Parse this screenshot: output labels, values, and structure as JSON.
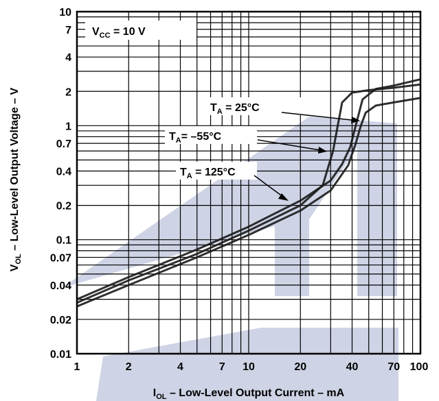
{
  "chart_data": {
    "type": "line",
    "title": "",
    "xlabel": {
      "main": "I",
      "sub": "OL",
      "rest": " – Low-Level Output Current – mA"
    },
    "ylabel": {
      "main": "V",
      "sub": "OL",
      "rest": "  – Low-Level Output Voltage – V"
    },
    "x_scale": "log",
    "y_scale": "log",
    "xlim": [
      1,
      100
    ],
    "ylim": [
      0.01,
      10
    ],
    "grid": true,
    "x_ticks": [
      1,
      2,
      4,
      7,
      10,
      20,
      40,
      70,
      100
    ],
    "x_tick_labels": [
      "1",
      "2",
      "4",
      "7",
      "10",
      "20",
      "40",
      "70",
      "100"
    ],
    "y_ticks": [
      0.01,
      0.02,
      0.04,
      0.07,
      0.1,
      0.2,
      0.4,
      0.7,
      1,
      2,
      4,
      7,
      10
    ],
    "y_tick_labels": [
      "0.01",
      "0.02",
      "0.04",
      "0.07",
      "0.1",
      "0.2",
      "0.4",
      "0.7",
      "1",
      "2",
      "4",
      "7",
      "10"
    ],
    "condition": {
      "main": "V",
      "sub": "CC",
      "rest": " = 10 V"
    },
    "line_color": "#1a1a1a",
    "watermark_color": "#c5cbe0",
    "series": [
      {
        "name": {
          "main": "T",
          "sub": "A",
          "rest": " = 25°C"
        },
        "x": [
          1,
          2,
          5,
          10,
          20,
          27,
          31,
          33,
          35,
          40,
          50,
          70,
          100
        ],
        "y": [
          0.028,
          0.044,
          0.075,
          0.12,
          0.2,
          0.3,
          0.6,
          1.0,
          1.6,
          1.95,
          2.05,
          2.15,
          2.3
        ]
      },
      {
        "name": {
          "main": "T",
          "sub": "A",
          "rest": "= –55°C"
        },
        "x": [
          1,
          2,
          5,
          10,
          20,
          30,
          35,
          39,
          42,
          46,
          55,
          70,
          100
        ],
        "y": [
          0.03,
          0.047,
          0.082,
          0.13,
          0.22,
          0.33,
          0.46,
          0.65,
          1.0,
          1.7,
          2.1,
          2.25,
          2.55
        ]
      },
      {
        "name": {
          "main": "T",
          "sub": "A",
          "rest": " = 125°C"
        },
        "x": [
          1,
          2,
          5,
          10,
          20,
          30,
          38,
          42,
          45,
          48,
          55,
          70,
          100
        ],
        "y": [
          0.026,
          0.04,
          0.07,
          0.11,
          0.18,
          0.27,
          0.45,
          0.7,
          1.0,
          1.3,
          1.5,
          1.6,
          1.75
        ]
      }
    ]
  }
}
